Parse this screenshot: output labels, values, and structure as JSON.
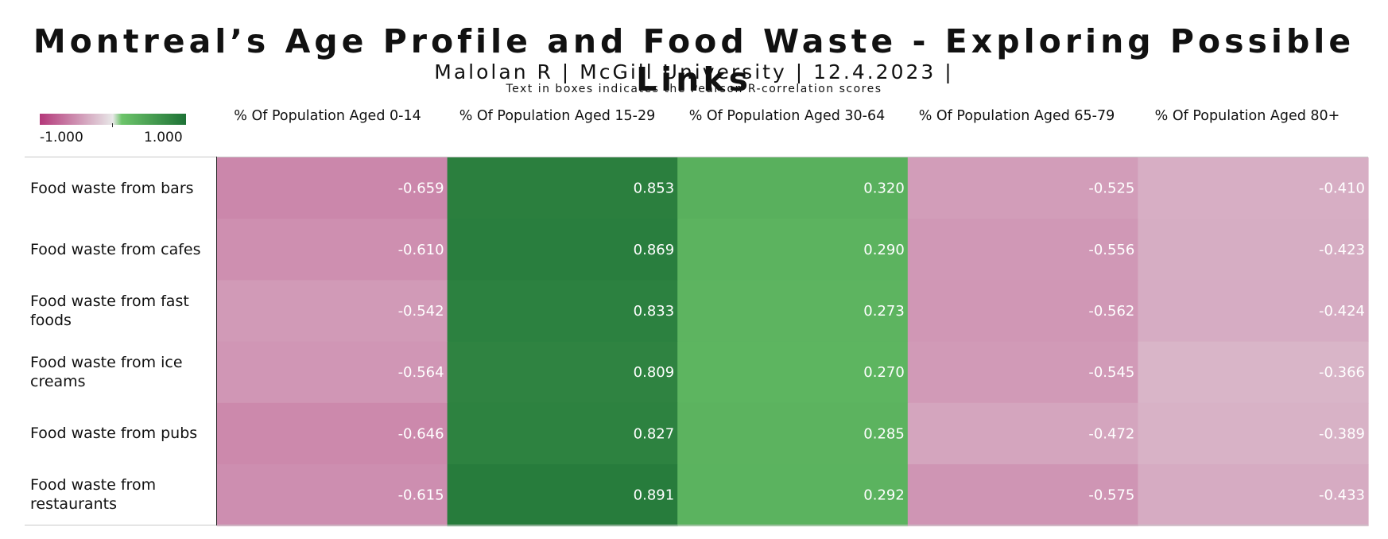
{
  "chart_data": {
    "type": "heatmap",
    "title": "Montreal’s Age Profile and Food Waste - Exploring Possible Links",
    "subtitle": "Malolan R | McGill University | 12.4.2023 |",
    "note": "Text in boxes indicates the Pearson R-correlation scores",
    "legend": {
      "min_label": "-1.000",
      "max_label": "1.000",
      "min": -1,
      "max": 1,
      "colors": [
        "#b4387a",
        "#e8e8e8",
        "#6cc46a",
        "#1e7236"
      ],
      "placement": "top-left"
    },
    "columns": [
      "% Of Population Aged 0-14",
      "% Of Population Aged 15-29",
      "% Of Population Aged 30-64",
      "% Of Population Aged 65-79",
      "% Of Population Aged 80+"
    ],
    "rows": [
      "Food waste from bars",
      "Food waste from cafes",
      "Food waste from fast foods",
      "Food waste from ice creams",
      "Food waste from pubs",
      "Food waste from restaurants"
    ],
    "values": [
      [
        -0.659,
        0.853,
        0.32,
        -0.525,
        -0.41
      ],
      [
        -0.61,
        0.869,
        0.29,
        -0.556,
        -0.423
      ],
      [
        -0.542,
        0.833,
        0.273,
        -0.562,
        -0.424
      ],
      [
        -0.564,
        0.809,
        0.27,
        -0.545,
        -0.366
      ],
      [
        -0.646,
        0.827,
        0.285,
        -0.472,
        -0.389
      ],
      [
        -0.615,
        0.891,
        0.292,
        -0.575,
        -0.433
      ]
    ],
    "value_labels": [
      [
        "-0.659",
        "0.853",
        "0.320",
        "-0.525",
        "-0.410"
      ],
      [
        "-0.610",
        "0.869",
        "0.290",
        "-0.556",
        "-0.423"
      ],
      [
        "-0.542",
        "0.833",
        "0.273",
        "-0.562",
        "-0.424"
      ],
      [
        "-0.564",
        "0.809",
        "0.270",
        "-0.545",
        "-0.366"
      ],
      [
        "-0.646",
        "0.827",
        "0.285",
        "-0.472",
        "-0.389"
      ],
      [
        "-0.615",
        "0.891",
        "0.292",
        "-0.575",
        "-0.433"
      ]
    ]
  }
}
